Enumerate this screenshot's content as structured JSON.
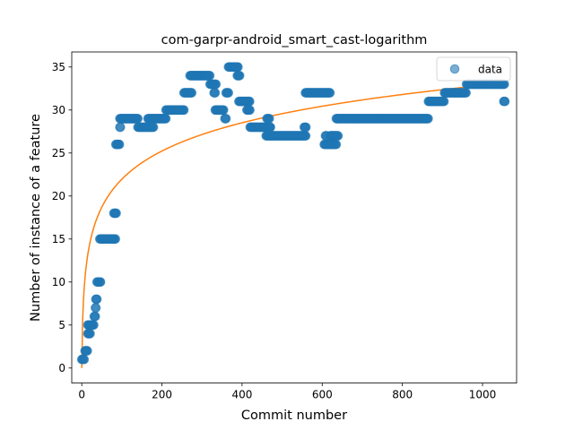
{
  "chart_data": {
    "type": "scatter",
    "title": "com-garpr-android_smart_cast-logarithm",
    "xlabel": "Commit number",
    "ylabel": "Number of instance of a feature",
    "xlim": [
      -25,
      1085
    ],
    "ylim": [
      -1.75,
      36.75
    ],
    "xticks": [
      0,
      200,
      400,
      600,
      800,
      1000
    ],
    "yticks": [
      0,
      5,
      10,
      15,
      20,
      25,
      30,
      35
    ],
    "legend": {
      "placement": "top-right",
      "entries": [
        "data"
      ]
    },
    "colors": {
      "scatter": "#1f77b4",
      "fit": "#ff7f0e"
    },
    "series": [
      {
        "name": "data",
        "style": "markers",
        "segments": [
          [
            0,
            6,
            1
          ],
          [
            8,
            14,
            2
          ],
          [
            15,
            22,
            4
          ],
          [
            15,
            30,
            5
          ],
          [
            31,
            35,
            6
          ],
          [
            34,
            36,
            7
          ],
          [
            35,
            39,
            8
          ],
          [
            38,
            48,
            10
          ],
          [
            45,
            85,
            15
          ],
          [
            80,
            86,
            18
          ],
          [
            85,
            95,
            26
          ],
          [
            95,
            97,
            28
          ],
          [
            95,
            140,
            29
          ],
          [
            140,
            180,
            28
          ],
          [
            165,
            210,
            29
          ],
          [
            210,
            255,
            30
          ],
          [
            255,
            275,
            32
          ],
          [
            270,
            320,
            34
          ],
          [
            320,
            335,
            33
          ],
          [
            330,
            334,
            32
          ],
          [
            333,
            355,
            30
          ],
          [
            357,
            360,
            29
          ],
          [
            360,
            366,
            32
          ],
          [
            366,
            390,
            35
          ],
          [
            388,
            395,
            34
          ],
          [
            392,
            420,
            31
          ],
          [
            412,
            420,
            30
          ],
          [
            420,
            470,
            28
          ],
          [
            462,
            468,
            29
          ],
          [
            468,
            472,
            28
          ],
          [
            460,
            560,
            27
          ],
          [
            555,
            560,
            28
          ],
          [
            558,
            620,
            32
          ],
          [
            605,
            635,
            26
          ],
          [
            608,
            612,
            27
          ],
          [
            620,
            640,
            27
          ],
          [
            635,
            865,
            29
          ],
          [
            865,
            905,
            31
          ],
          [
            905,
            960,
            32
          ],
          [
            960,
            1055,
            33
          ],
          [
            1053,
            1057,
            31
          ]
        ]
      },
      {
        "name": "",
        "style": "line",
        "equation": "a*ln(x+1)",
        "a": 4.757,
        "xrange": [
          0,
          1060
        ]
      }
    ]
  }
}
